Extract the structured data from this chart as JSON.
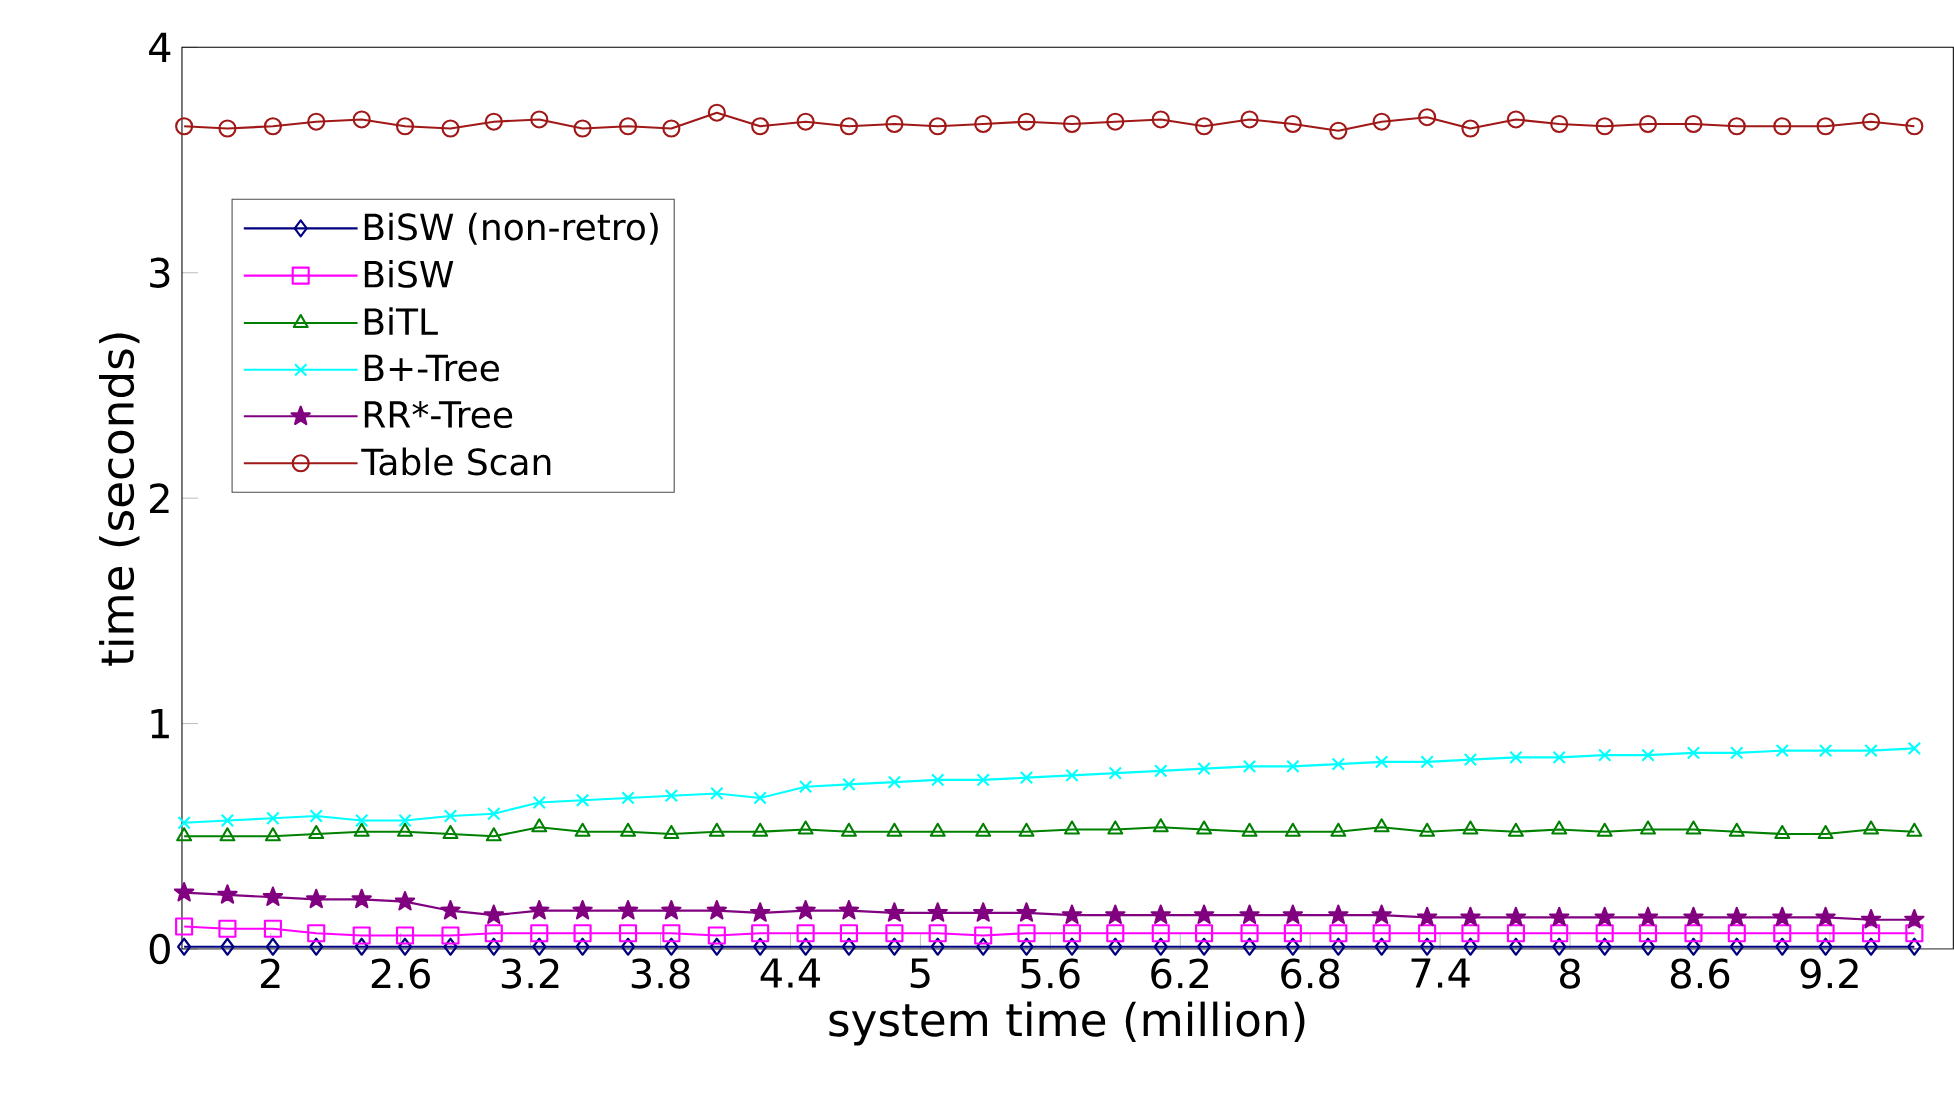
{
  "chart_data": {
    "type": "line",
    "xlabel": "system time (million)",
    "ylabel": "time (seconds)",
    "x": [
      1.6,
      1.8,
      2.01,
      2.21,
      2.42,
      2.62,
      2.83,
      3.03,
      3.24,
      3.44,
      3.65,
      3.85,
      4.06,
      4.26,
      4.47,
      4.67,
      4.88,
      5.08,
      5.29,
      5.49,
      5.7,
      5.9,
      6.11,
      6.31,
      6.52,
      6.72,
      6.93,
      7.13,
      7.34,
      7.54,
      7.75,
      7.95,
      8.16,
      8.36,
      8.57,
      8.77,
      8.98,
      9.18,
      9.39,
      9.59
    ],
    "xlim": [
      1.59,
      9.77
    ],
    "xticks": [
      2,
      2.6,
      3.2,
      3.8,
      4.4,
      5,
      5.6,
      6.2,
      6.8,
      7.4,
      8,
      8.6,
      9.2
    ],
    "ylim": [
      0,
      4
    ],
    "yticks": [
      0,
      1,
      2,
      3,
      4
    ],
    "legend": "top left",
    "series": [
      {
        "name": "BiSW (non-retro)",
        "color": "#000080",
        "marker": "diamond",
        "values": [
          0.01,
          0.01,
          0.01,
          0.01,
          0.01,
          0.01,
          0.01,
          0.01,
          0.01,
          0.01,
          0.01,
          0.01,
          0.01,
          0.01,
          0.01,
          0.01,
          0.01,
          0.01,
          0.01,
          0.01,
          0.01,
          0.01,
          0.01,
          0.01,
          0.01,
          0.01,
          0.01,
          0.01,
          0.01,
          0.01,
          0.01,
          0.01,
          0.01,
          0.01,
          0.01,
          0.01,
          0.01,
          0.01,
          0.01,
          0.01
        ]
      },
      {
        "name": "BiSW",
        "color": "#ff00ff",
        "marker": "square",
        "values": [
          0.1,
          0.09,
          0.09,
          0.07,
          0.06,
          0.06,
          0.06,
          0.07,
          0.07,
          0.07,
          0.07,
          0.07,
          0.06,
          0.07,
          0.07,
          0.07,
          0.07,
          0.07,
          0.06,
          0.07,
          0.07,
          0.07,
          0.07,
          0.07,
          0.07,
          0.07,
          0.07,
          0.07,
          0.07,
          0.07,
          0.07,
          0.07,
          0.07,
          0.07,
          0.07,
          0.07,
          0.07,
          0.07,
          0.07,
          0.07
        ]
      },
      {
        "name": "BiTL",
        "color": "#008000",
        "marker": "triangle",
        "values": [
          0.5,
          0.5,
          0.5,
          0.51,
          0.52,
          0.52,
          0.51,
          0.5,
          0.54,
          0.52,
          0.52,
          0.51,
          0.52,
          0.52,
          0.53,
          0.52,
          0.52,
          0.52,
          0.52,
          0.52,
          0.53,
          0.53,
          0.54,
          0.53,
          0.52,
          0.52,
          0.52,
          0.54,
          0.52,
          0.53,
          0.52,
          0.53,
          0.52,
          0.53,
          0.53,
          0.52,
          0.51,
          0.51,
          0.53,
          0.52
        ]
      },
      {
        "name": "B+-Tree",
        "color": "#00ffff",
        "marker": "cross",
        "values": [
          0.56,
          0.57,
          0.58,
          0.59,
          0.57,
          0.57,
          0.59,
          0.6,
          0.65,
          0.66,
          0.67,
          0.68,
          0.69,
          0.67,
          0.72,
          0.73,
          0.74,
          0.75,
          0.75,
          0.76,
          0.77,
          0.78,
          0.79,
          0.8,
          0.81,
          0.81,
          0.82,
          0.83,
          0.83,
          0.84,
          0.85,
          0.85,
          0.86,
          0.86,
          0.87,
          0.87,
          0.88,
          0.88,
          0.88,
          0.89
        ]
      },
      {
        "name": "RR*-Tree",
        "color": "#800080",
        "marker": "star",
        "values": [
          0.25,
          0.24,
          0.23,
          0.22,
          0.22,
          0.21,
          0.17,
          0.15,
          0.17,
          0.17,
          0.17,
          0.17,
          0.17,
          0.16,
          0.17,
          0.17,
          0.16,
          0.16,
          0.16,
          0.16,
          0.15,
          0.15,
          0.15,
          0.15,
          0.15,
          0.15,
          0.15,
          0.15,
          0.14,
          0.14,
          0.14,
          0.14,
          0.14,
          0.14,
          0.14,
          0.14,
          0.14,
          0.14,
          0.13,
          0.13
        ]
      },
      {
        "name": "Table Scan",
        "color": "#a01818",
        "marker": "circle",
        "values": [
          3.65,
          3.64,
          3.65,
          3.67,
          3.68,
          3.65,
          3.64,
          3.67,
          3.68,
          3.64,
          3.65,
          3.64,
          3.71,
          3.65,
          3.67,
          3.65,
          3.66,
          3.65,
          3.66,
          3.67,
          3.66,
          3.67,
          3.68,
          3.65,
          3.68,
          3.66,
          3.63,
          3.67,
          3.69,
          3.64,
          3.68,
          3.66,
          3.65,
          3.66,
          3.66,
          3.65,
          3.65,
          3.65,
          3.67,
          3.65
        ]
      }
    ]
  }
}
